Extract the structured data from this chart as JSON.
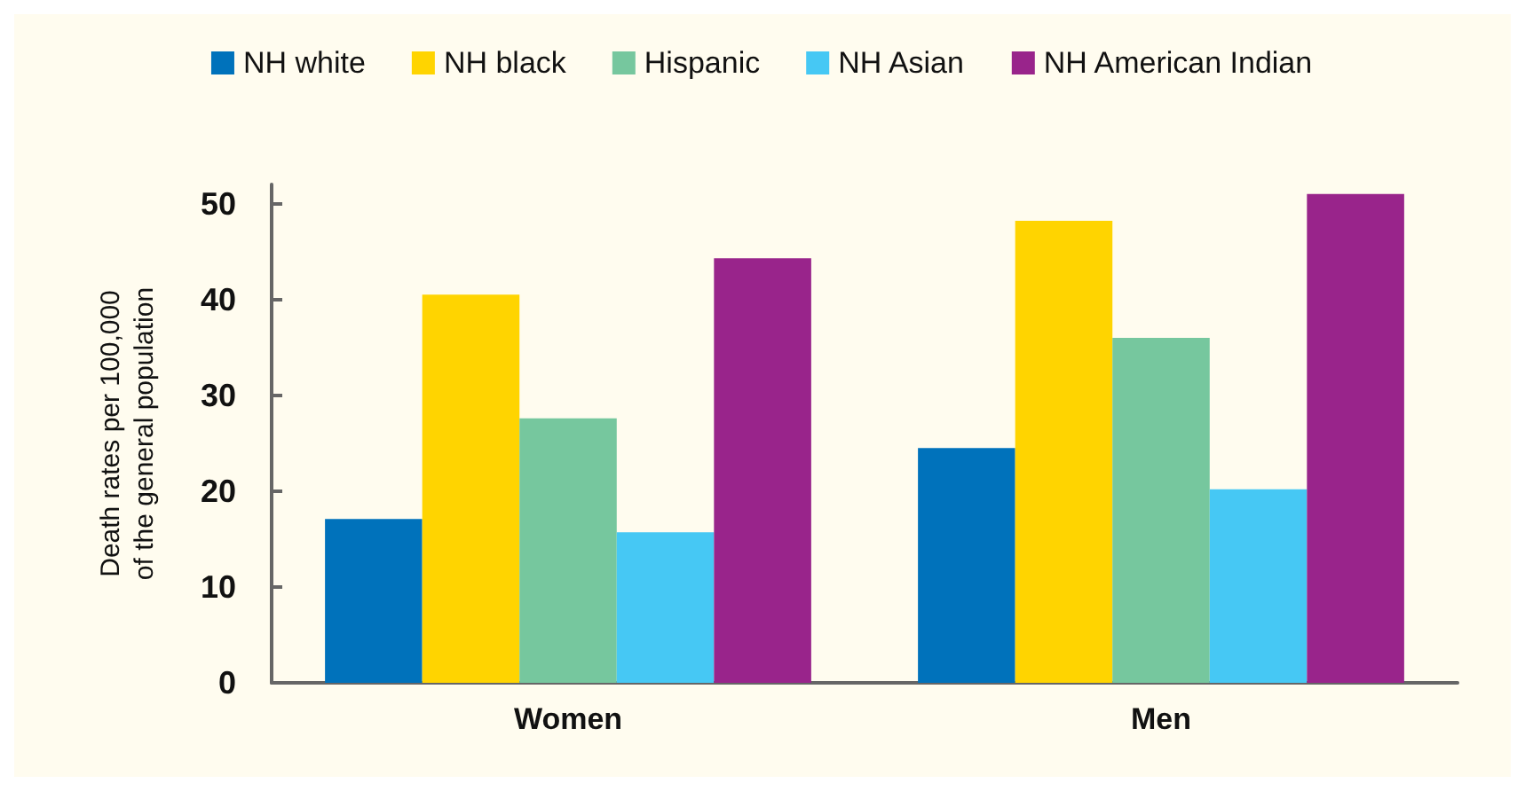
{
  "chart_data": {
    "type": "bar",
    "ylabel": "Death rates per 100,000\nof the general population",
    "categories": [
      "Women",
      "Men"
    ],
    "series": [
      {
        "name": "NH white",
        "color": "#0072bb",
        "values": [
          17.1,
          24.5
        ]
      },
      {
        "name": "NH black",
        "color": "#ffd400",
        "values": [
          40.5,
          48.2
        ]
      },
      {
        "name": "Hispanic",
        "color": "#76c79e",
        "values": [
          27.6,
          36.0
        ]
      },
      {
        "name": "NH Asian",
        "color": "#46c8f4",
        "values": [
          15.7,
          20.2
        ]
      },
      {
        "name": "NH American Indian",
        "color": "#99248b",
        "values": [
          44.3,
          51.0
        ]
      }
    ],
    "ylim": [
      0,
      52
    ],
    "yticks": [
      0,
      10,
      20,
      30,
      40,
      50
    ],
    "grid": false,
    "legend": "top"
  }
}
